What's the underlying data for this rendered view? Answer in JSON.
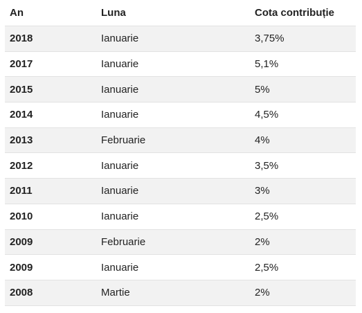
{
  "table": {
    "headers": [
      "An",
      "Luna",
      "Cota contribuție"
    ],
    "rows": [
      {
        "year": "2018",
        "month": "Ianuarie",
        "rate": "3,75%"
      },
      {
        "year": "2017",
        "month": "Ianuarie",
        "rate": "5,1%"
      },
      {
        "year": "2015",
        "month": "Ianuarie",
        "rate": "5%"
      },
      {
        "year": "2014",
        "month": "Ianuarie",
        "rate": "4,5%"
      },
      {
        "year": "2013",
        "month": "Februarie",
        "rate": "4%"
      },
      {
        "year": "2012",
        "month": "Ianuarie",
        "rate": "3,5%"
      },
      {
        "year": "2011",
        "month": "Ianuarie",
        "rate": "3%"
      },
      {
        "year": "2010",
        "month": "Ianuarie",
        "rate": "2,5%"
      },
      {
        "year": "2009",
        "month": "Februarie",
        "rate": "2%"
      },
      {
        "year": "2009",
        "month": "Ianuarie",
        "rate": "2,5%"
      },
      {
        "year": "2008",
        "month": "Martie",
        "rate": "2%"
      }
    ]
  }
}
